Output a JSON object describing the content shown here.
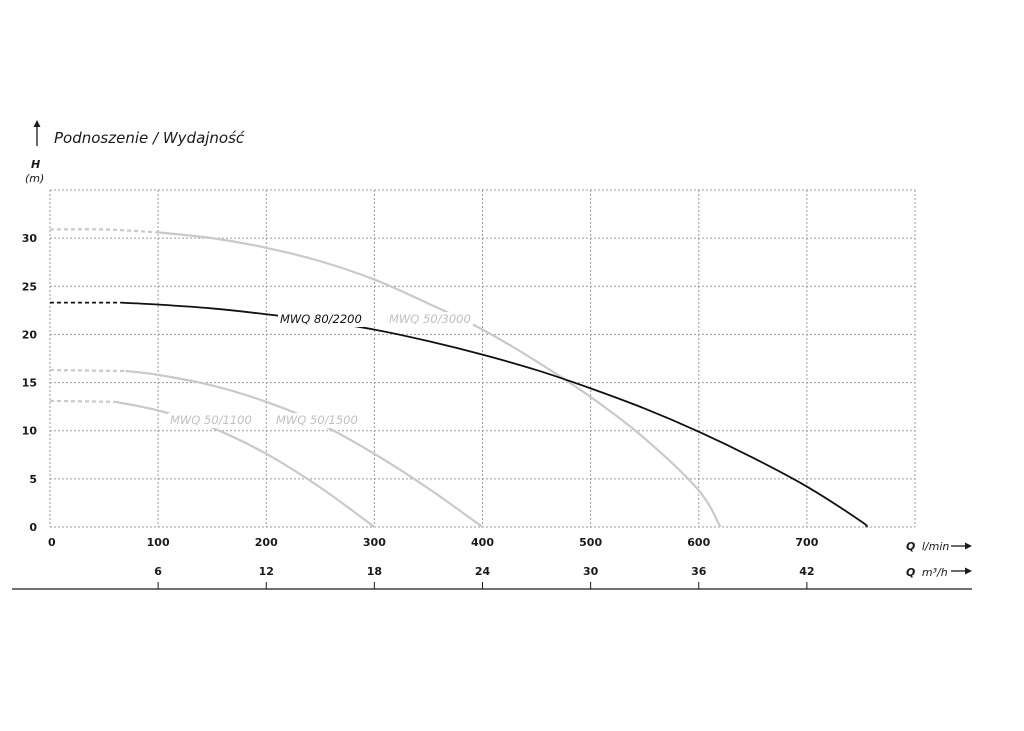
{
  "chart_data": {
    "type": "line",
    "title": "Podnoszenie / Wydajność",
    "ylabel": "H",
    "yunit": "(m)",
    "ylim": [
      0,
      35
    ],
    "yticks": [
      0,
      5,
      10,
      15,
      20,
      25,
      30
    ],
    "xlim": [
      0,
      800
    ],
    "xticks": [
      0,
      100,
      200,
      300,
      400,
      500,
      600,
      700
    ],
    "xlabel_q": "Q",
    "xlabel_unit": "l/min",
    "secondary_axis": {
      "label_q": "Q",
      "label_unit": "m³/h",
      "ticks": [
        6,
        12,
        18,
        24,
        30,
        36,
        42
      ]
    },
    "grid": true,
    "series": [
      {
        "name": "MWQ 50/3000",
        "color": "#c9c9c9",
        "dashed_until": 100,
        "x": [
          0,
          50,
          100,
          150,
          200,
          250,
          300,
          350,
          400,
          450,
          500,
          550,
          600,
          620
        ],
        "y": [
          30.9,
          30.9,
          30.6,
          30.0,
          29.0,
          27.6,
          25.7,
          23.2,
          20.5,
          17.2,
          13.5,
          9.2,
          3.8,
          0
        ]
      },
      {
        "name": "MWQ 80/2200",
        "color": "#111111",
        "dashed_until": 65,
        "x": [
          0,
          65,
          100,
          150,
          200,
          250,
          300,
          350,
          400,
          450,
          500,
          550,
          600,
          650,
          700,
          750,
          755
        ],
        "y": [
          23.3,
          23.3,
          23.1,
          22.7,
          22.1,
          21.4,
          20.5,
          19.3,
          17.9,
          16.3,
          14.4,
          12.3,
          9.9,
          7.2,
          4.2,
          0.6,
          0
        ]
      },
      {
        "name": "MWQ 50/1500",
        "color": "#c9c9c9",
        "dashed_until": 70,
        "x": [
          0,
          70,
          100,
          150,
          200,
          250,
          300,
          350,
          400
        ],
        "y": [
          16.3,
          16.2,
          15.8,
          14.7,
          13.0,
          10.7,
          7.6,
          4.0,
          0
        ]
      },
      {
        "name": "MWQ 50/1100",
        "color": "#c9c9c9",
        "dashed_until": 60,
        "x": [
          0,
          60,
          100,
          150,
          200,
          250,
          300
        ],
        "y": [
          13.1,
          13.0,
          12.1,
          10.3,
          7.6,
          4.1,
          0
        ]
      }
    ]
  }
}
